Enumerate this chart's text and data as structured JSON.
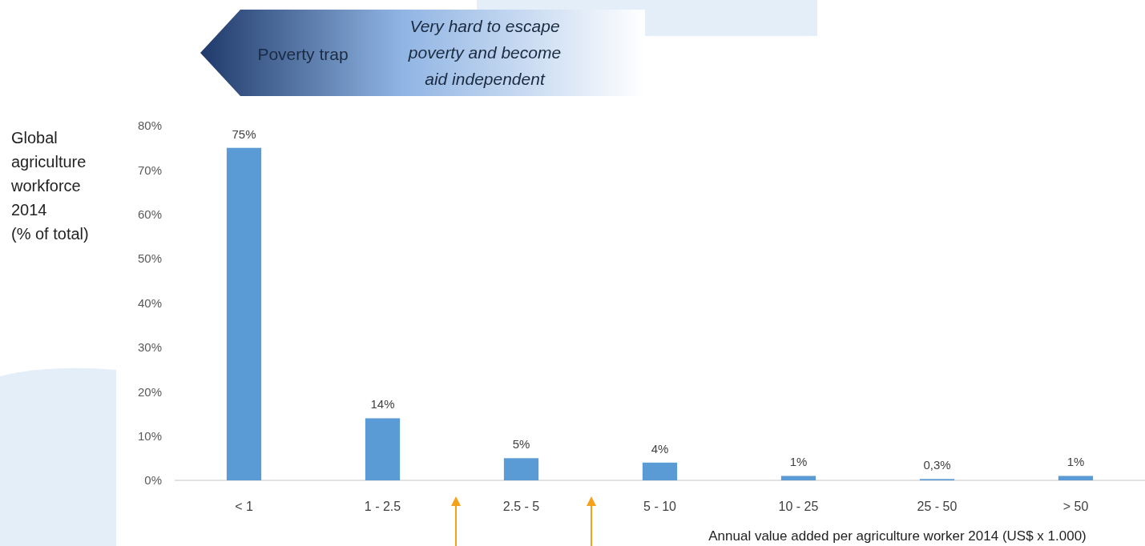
{
  "chart_data": {
    "type": "bar",
    "ylabel": "Global\nagriculture\nworkforce\n2014\n(% of total)",
    "xlabel": "Annual value added per agriculture worker 2014 (US$ x 1.000)",
    "categories": [
      "< 1",
      "1 - 2.5",
      "2.5 - 5",
      "5 - 10",
      "10 - 25",
      "25 - 50",
      "> 50"
    ],
    "values": [
      75,
      14,
      5,
      4,
      1,
      0.3,
      1
    ],
    "value_labels": [
      "75%",
      "14%",
      "5%",
      "4%",
      "1%",
      "0,3%",
      "1%"
    ],
    "color": "#5b9bd5",
    "ylim": [
      0,
      80
    ],
    "yticks": [
      {
        "value": 0,
        "label": "0%"
      },
      {
        "value": 10,
        "label": "10%"
      },
      {
        "value": 20,
        "label": "20%"
      },
      {
        "value": 30,
        "label": "30%"
      },
      {
        "value": 40,
        "label": "40%"
      },
      {
        "value": 50,
        "label": "50%"
      },
      {
        "value": 60,
        "label": "60%"
      },
      {
        "value": 70,
        "label": "70%"
      },
      {
        "value": 80,
        "label": "80%"
      }
    ],
    "annotations": [
      "Poverty trap",
      "Very hard to escape\npoverty and become\naid independent"
    ]
  }
}
